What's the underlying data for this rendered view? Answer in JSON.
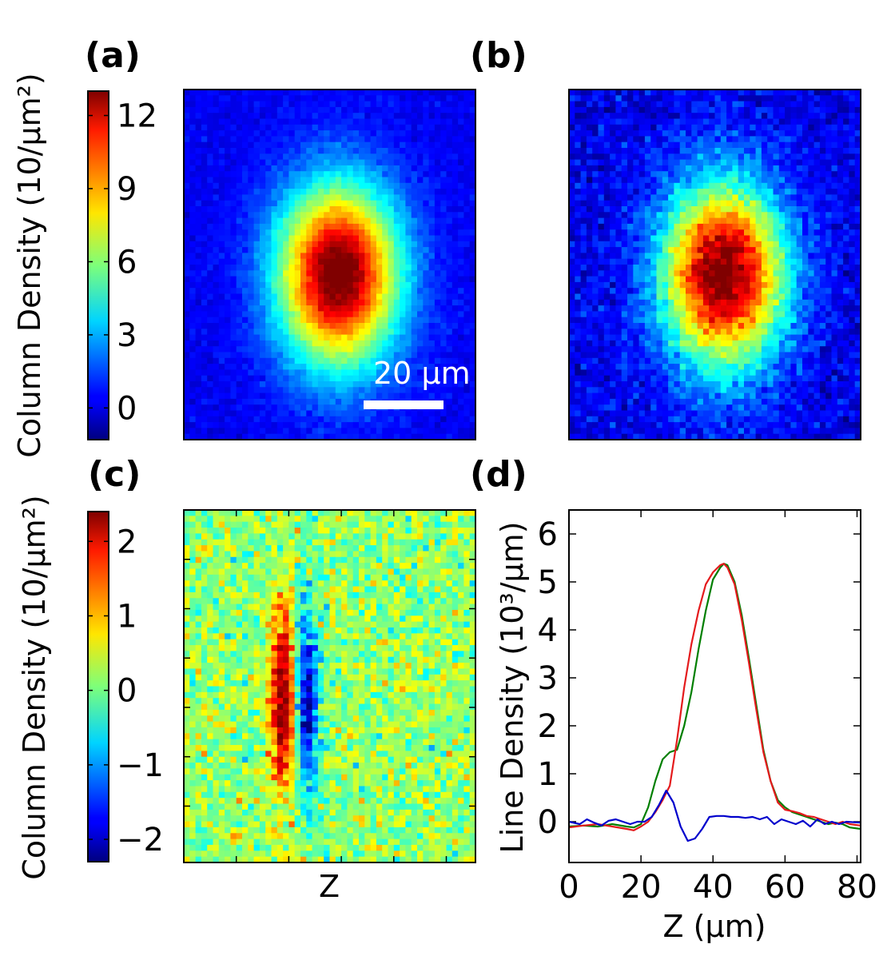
{
  "panels": {
    "a": "(a)",
    "b": "(b)",
    "c": "(c)",
    "d": "(d)"
  },
  "colorbar_top": {
    "label": "Column Density (10/μm²)",
    "ticks": [
      "12",
      "9",
      "6",
      "3",
      "0"
    ],
    "tick_values": [
      12,
      9,
      6,
      3,
      0
    ],
    "range": [
      -1.3,
      13.0
    ]
  },
  "colorbar_bottom": {
    "label": "Column Density (10/μm²)",
    "ticks": [
      "2",
      "1",
      "0",
      "−1",
      "−2"
    ],
    "tick_values": [
      2,
      1,
      0,
      -1,
      -2
    ],
    "range": [
      -2.3,
      2.4
    ]
  },
  "scalebar": {
    "label": "20 μm",
    "length_um": 20
  },
  "image_c_xlabel": "Z",
  "colors": {
    "series_green": "#007f00",
    "series_red": "#e41a1c",
    "series_blue": "#0000cc"
  },
  "chart_data": {
    "type": "line",
    "xlabel": "Z (μm)",
    "ylabel": "Line Density (10³/μm)",
    "xlim": [
      0,
      81
    ],
    "ylim": [
      -0.85,
      6.5
    ],
    "xticks": [
      "0",
      "20",
      "40",
      "60",
      "80"
    ],
    "xtick_values": [
      0,
      20,
      40,
      60,
      80
    ],
    "yticks": [
      "0",
      "1",
      "2",
      "3",
      "4",
      "5",
      "6"
    ],
    "ytick_values": [
      0,
      1,
      2,
      3,
      4,
      5,
      6
    ],
    "series": [
      {
        "name": "green",
        "x": [
          0,
          4,
          8,
          12,
          16,
          18,
          20,
          22,
          24,
          26,
          28,
          30,
          32,
          34,
          36,
          38,
          40,
          42,
          43,
          44,
          46,
          48,
          50,
          52,
          54,
          56,
          58,
          60,
          62,
          64,
          66,
          68,
          70,
          72,
          74,
          76,
          78,
          81
        ],
        "y": [
          -0.1,
          -0.08,
          -0.1,
          -0.05,
          -0.1,
          -0.12,
          -0.05,
          0.3,
          0.85,
          1.3,
          1.45,
          1.5,
          2.0,
          2.7,
          3.6,
          4.4,
          5.05,
          5.3,
          5.38,
          5.35,
          5.0,
          4.3,
          3.4,
          2.45,
          1.5,
          0.85,
          0.45,
          0.3,
          0.2,
          0.15,
          0.1,
          0.05,
          0.0,
          -0.05,
          -0.02,
          -0.05,
          -0.12,
          -0.15
        ]
      },
      {
        "name": "red",
        "x": [
          0,
          4,
          8,
          12,
          16,
          18,
          20,
          22,
          24,
          26,
          28,
          30,
          32,
          34,
          36,
          38,
          40,
          42,
          43,
          44,
          46,
          48,
          50,
          52,
          54,
          56,
          58,
          60,
          62,
          64,
          66,
          68,
          70,
          72,
          74,
          76,
          78,
          81
        ],
        "y": [
          -0.12,
          -0.08,
          -0.05,
          -0.1,
          -0.15,
          -0.18,
          -0.1,
          0.0,
          0.2,
          0.45,
          0.75,
          1.7,
          2.8,
          3.7,
          4.4,
          4.95,
          5.2,
          5.35,
          5.38,
          5.3,
          4.95,
          4.2,
          3.3,
          2.35,
          1.45,
          0.85,
          0.4,
          0.25,
          0.22,
          0.18,
          0.12,
          0.1,
          0.05,
          0.0,
          -0.05,
          0.0,
          -0.05,
          -0.08
        ]
      },
      {
        "name": "blue",
        "x": [
          0,
          3,
          5,
          7,
          9,
          11,
          13,
          15,
          17,
          19,
          21,
          23,
          25,
          27,
          29,
          31,
          33,
          35,
          37,
          39,
          41,
          43,
          45,
          47,
          49,
          51,
          53,
          55,
          57,
          59,
          61,
          63,
          65,
          67,
          69,
          71,
          73,
          75,
          77,
          81
        ],
        "y": [
          0.0,
          -0.05,
          0.05,
          -0.02,
          -0.08,
          0.02,
          0.05,
          0.0,
          -0.05,
          0.0,
          0.0,
          0.1,
          0.35,
          0.65,
          0.4,
          -0.1,
          -0.4,
          -0.35,
          -0.15,
          0.1,
          0.12,
          0.12,
          0.1,
          0.1,
          0.08,
          0.1,
          0.05,
          0.1,
          -0.05,
          0.05,
          0.0,
          -0.05,
          0.02,
          -0.1,
          0.05,
          -0.05,
          0.0,
          -0.05,
          0.0,
          -0.02
        ]
      }
    ]
  }
}
